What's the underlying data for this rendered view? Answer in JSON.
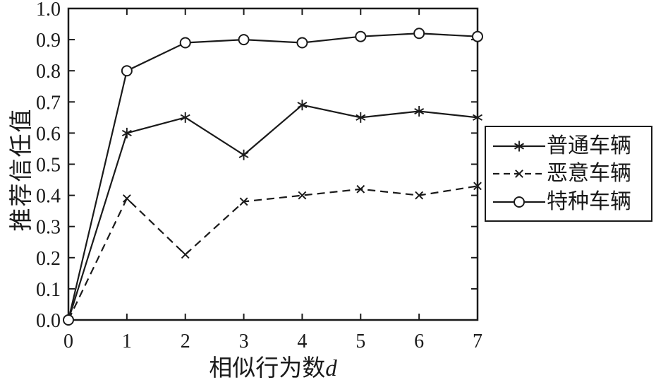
{
  "figure": {
    "background": "#ffffff",
    "line_color": "#1a1a1a"
  },
  "chart_data": {
    "type": "line",
    "x": [
      0,
      1,
      2,
      3,
      4,
      5,
      6,
      7
    ],
    "series": [
      {
        "name": "普通车辆",
        "marker": "asterisk",
        "line_style": "solid",
        "values": [
          0,
          0.6,
          0.65,
          0.53,
          0.69,
          0.65,
          0.67,
          0.65
        ]
      },
      {
        "name": "恶意车辆",
        "marker": "x",
        "line_style": "dashed",
        "values": [
          0,
          0.39,
          0.21,
          0.38,
          0.4,
          0.42,
          0.4,
          0.43
        ]
      },
      {
        "name": "特种车辆",
        "marker": "circle",
        "line_style": "solid",
        "values": [
          0,
          0.8,
          0.89,
          0.9,
          0.89,
          0.91,
          0.92,
          0.91
        ]
      }
    ],
    "title": "",
    "xlabel_main": "相似行为数",
    "xlabel_var": "d",
    "ylabel": "推荐信任值",
    "xlim": [
      0,
      7
    ],
    "ylim": [
      0.0,
      1.0
    ],
    "x_tick_labels": [
      "0",
      "1",
      "2",
      "3",
      "4",
      "5",
      "6",
      "7"
    ],
    "y_tick_labels": [
      "0.0",
      "0.1",
      "0.2",
      "0.3",
      "0.4",
      "0.5",
      "0.6",
      "0.7",
      "0.8",
      "0.9",
      "1.0"
    ],
    "grid": false,
    "legend_position": "right-outside-middle"
  }
}
